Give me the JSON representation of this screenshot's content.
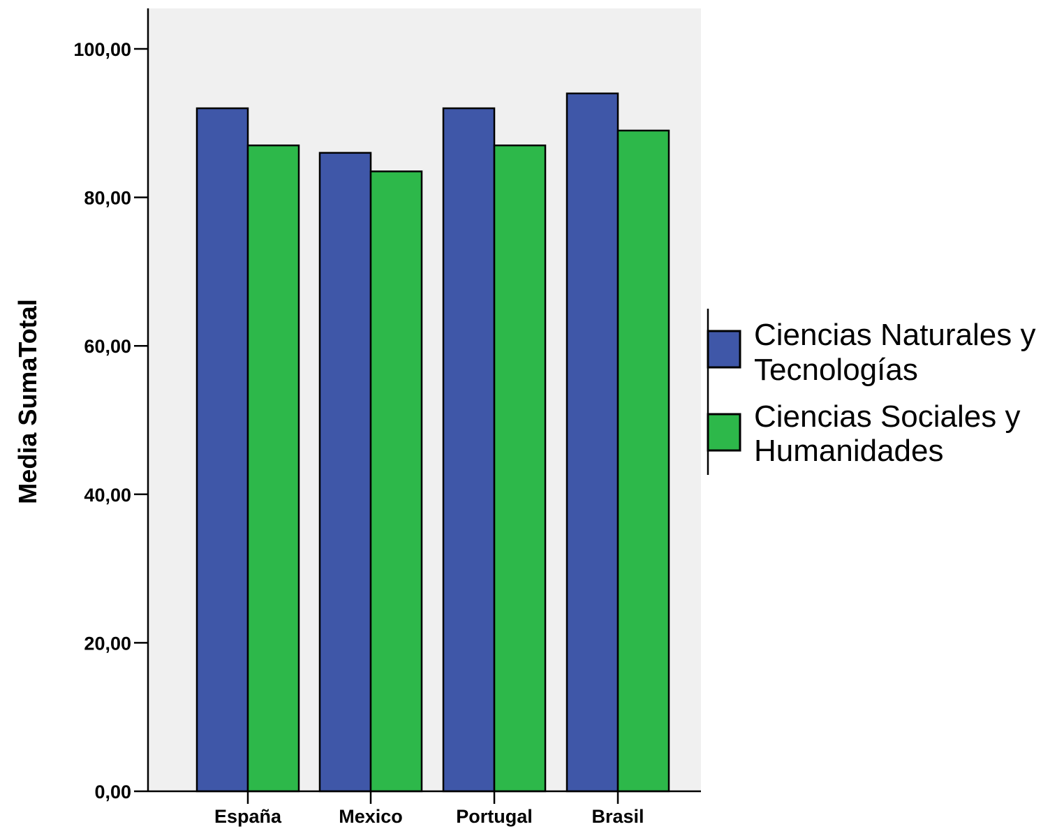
{
  "chart_data": {
    "type": "bar",
    "categories": [
      "España",
      "Mexico",
      "Portugal",
      "Brasil"
    ],
    "series": [
      {
        "name": "Ciencias Naturales y Tecnologías",
        "values": [
          92,
          86,
          92,
          94
        ],
        "color": "#3f57a8"
      },
      {
        "name": "Ciencias Sociales y Humanidades",
        "values": [
          87,
          83.5,
          87,
          89
        ],
        "color": "#2db84a"
      }
    ],
    "legend_lines": [
      [
        "Ciencias Naturales y",
        "Tecnologías"
      ],
      [
        "Ciencias Sociales y",
        "Humanidades"
      ]
    ],
    "ylabel": "Media SumaTotal",
    "xlabel": "",
    "ylim": [
      0,
      100
    ],
    "yticks": [
      "0,00",
      "20,00",
      "40,00",
      "60,00",
      "80,00",
      "100,00"
    ],
    "legend_position": "right",
    "plot_background": "#f0f0f0"
  }
}
